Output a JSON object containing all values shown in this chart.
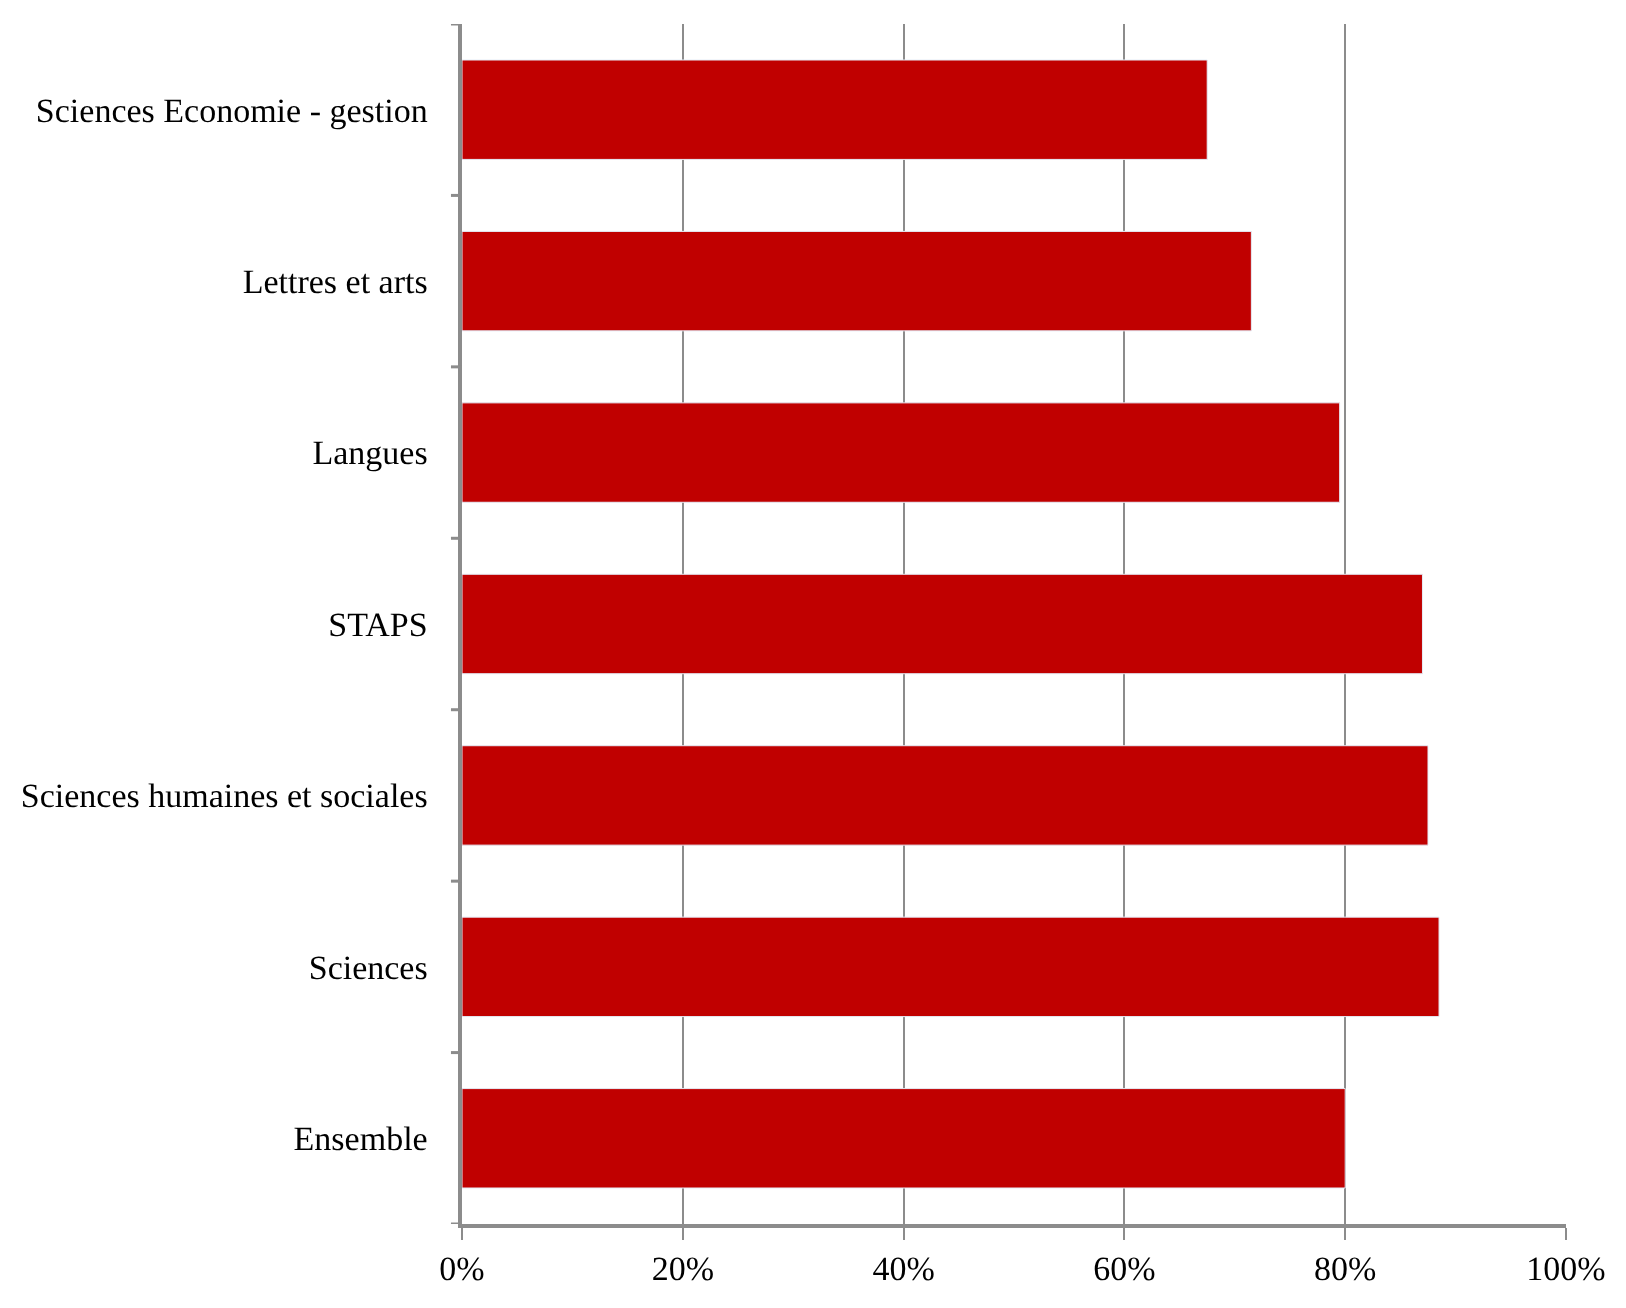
{
  "chart_data": {
    "type": "bar",
    "orientation": "horizontal",
    "categories": [
      "Sciences Economie - gestion",
      "Lettres et arts",
      "Langues",
      "STAPS",
      "Sciences humaines et sociales",
      "Sciences",
      "Ensemble"
    ],
    "values": [
      67.5,
      71.5,
      79.5,
      87,
      87.5,
      88.5,
      80
    ],
    "color": "#c00000",
    "xlim": [
      0,
      100
    ],
    "xticks": [
      {
        "value": 0,
        "label": "0%"
      },
      {
        "value": 20,
        "label": "20%"
      },
      {
        "value": 40,
        "label": "40%"
      },
      {
        "value": 60,
        "label": "60%"
      },
      {
        "value": 80,
        "label": "80%"
      },
      {
        "value": 100,
        "label": "100%"
      }
    ],
    "grid": "x"
  }
}
